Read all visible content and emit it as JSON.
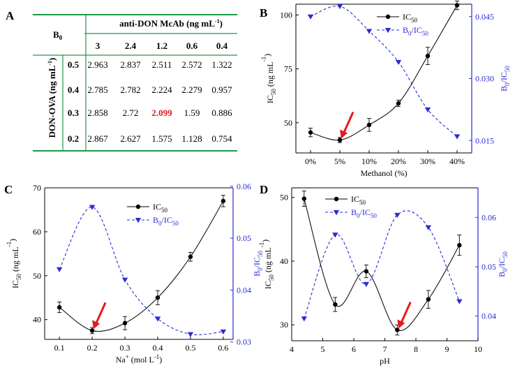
{
  "panels": {
    "A": {
      "letter": "A",
      "corner_label": "B",
      "corner_sub": "0",
      "header": "anti-DON McAb (ng mL",
      "header_sup": "-1",
      "header_close": ")",
      "row_header": "DON-OVA (ng mL",
      "row_header_sup": "-1",
      "row_header_close": ")",
      "columns": [
        "3",
        "2.4",
        "1.2",
        "0.6",
        "0.4"
      ],
      "rows": [
        {
          "label": "0.5",
          "values": [
            "2.963",
            "2.837",
            "2.511",
            "2.572",
            "1.322"
          ]
        },
        {
          "label": "0.4",
          "values": [
            "2.785",
            "2.782",
            "2.224",
            "2.279",
            "0.957"
          ]
        },
        {
          "label": "0.3",
          "values": [
            "2.858",
            "2.72",
            "2.099",
            "1.59",
            "0.886"
          ]
        },
        {
          "label": "0.2",
          "values": [
            "2.867",
            "2.627",
            "1.575",
            "1.128",
            "0.754"
          ]
        }
      ],
      "highlight": {
        "row": 2,
        "col": 2,
        "color": "#e8191a"
      },
      "line_color": "#1a9a46"
    },
    "B": {
      "letter": "B"
    },
    "C": {
      "letter": "C"
    },
    "D": {
      "letter": "D"
    }
  },
  "legend": {
    "ic50_main": "IC",
    "ic50_sub": "50",
    "ratio_main": "B",
    "ratio_sub0": "0",
    "ratio_slash": "/IC",
    "ratio_sub50": "50"
  },
  "colors": {
    "ic50": "#111111",
    "ratio": "#2b2bd6",
    "arrow": "#e8191a"
  },
  "chart_data": [
    {
      "panel": "B",
      "type": "line",
      "title": "",
      "xlabel": "Methanol (%)",
      "categories": [
        "0%",
        "5%",
        "10%",
        "20%",
        "30%",
        "40%"
      ],
      "ylabel_left": "IC50 (ng mL-1)",
      "ylabel_right": "B0/IC50",
      "ylim_left": [
        36,
        105
      ],
      "yticks_left": [
        50,
        75,
        100
      ],
      "ylim_right": [
        0.012,
        0.048
      ],
      "yticks_right": [
        "0.015",
        "0.030",
        "0.045"
      ],
      "series": [
        {
          "name": "IC50",
          "axis": "left",
          "values": [
            45.5,
            42.0,
            49.0,
            59.0,
            81.0,
            104.5
          ],
          "errors": [
            2.0,
            1.2,
            3.0,
            1.5,
            4.0,
            2.0
          ]
        },
        {
          "name": "B0/IC50",
          "axis": "right",
          "values": [
            0.045,
            0.0475,
            0.0415,
            0.034,
            0.0225,
            0.016
          ]
        }
      ],
      "arrow_at": 1
    },
    {
      "panel": "C",
      "type": "line",
      "title": "",
      "xlabel": "Na+ (mol L-1)",
      "x": [
        0.1,
        0.2,
        0.3,
        0.4,
        0.5,
        0.6
      ],
      "xticks": [
        "0.1",
        "0.2",
        "0.3",
        "0.4",
        "0.5",
        "0.6"
      ],
      "ylabel_left": "IC50 (ng mL-1)",
      "ylabel_right": "B0/IC50",
      "ylim_left": [
        35.5,
        70
      ],
      "yticks_left": [
        "40",
        "50",
        "60",
        "70"
      ],
      "ylim_right": [
        0.0305,
        0.0597
      ],
      "yticks_right": [
        "0.03",
        "0.04",
        "0.05",
        "0.06"
      ],
      "series": [
        {
          "name": "IC50",
          "axis": "left",
          "values": [
            42.8,
            37.5,
            39.2,
            45.0,
            54.3,
            67.0
          ],
          "errors": [
            1.2,
            0.7,
            1.5,
            1.6,
            1.0,
            1.3
          ]
        },
        {
          "name": "B0/IC50",
          "axis": "right",
          "values": [
            0.044,
            0.056,
            0.042,
            0.0345,
            0.0315,
            0.032
          ]
        }
      ],
      "arrow_at": 1
    },
    {
      "panel": "D",
      "type": "line",
      "title": "",
      "xlabel": "pH",
      "x": [
        4.4,
        5.4,
        6.4,
        7.4,
        8.4,
        9.4
      ],
      "xlim": [
        4,
        10
      ],
      "xticks": [
        "4",
        "5",
        "6",
        "7",
        "8",
        "9",
        "10"
      ],
      "ylabel_left": "IC50 (ng mL-1)",
      "ylabel_right": "B0/IC50",
      "ylim_left": [
        27.5,
        51.5
      ],
      "yticks_left": [
        "30",
        "40",
        "50"
      ],
      "ylim_right": [
        0.035,
        0.066
      ],
      "yticks_right": [
        "0.04",
        "0.05",
        "0.06"
      ],
      "series": [
        {
          "name": "IC50",
          "axis": "left",
          "values": [
            49.8,
            33.2,
            38.4,
            29.2,
            34.0,
            42.5
          ],
          "errors": [
            1.2,
            1.1,
            1.0,
            0.8,
            1.4,
            1.6
          ]
        },
        {
          "name": "B0/IC50",
          "axis": "right",
          "values": [
            0.0395,
            0.0565,
            0.0465,
            0.0605,
            0.058,
            0.043
          ]
        }
      ],
      "arrow_at": 3
    }
  ]
}
